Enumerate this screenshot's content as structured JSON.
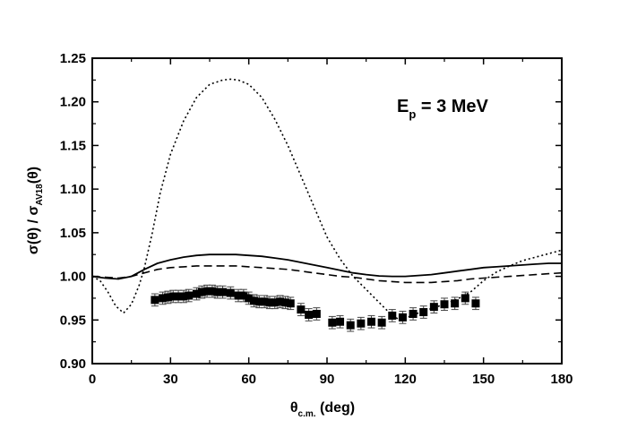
{
  "chart_data": {
    "type": "line",
    "annotation": {
      "base": "E",
      "sub": "p",
      "rest": " = 3 MeV"
    },
    "xlabel": {
      "base": "θ",
      "sub": "c.m.",
      "rest": " (deg)"
    },
    "ylabel": {
      "num_base": "σ(θ)",
      "sep": " / ",
      "den_base": "σ",
      "den_sub": "AV18",
      "den_rest": "(θ)"
    },
    "xlim": [
      0,
      180
    ],
    "ylim": [
      0.9,
      1.25
    ],
    "x_ticks": [
      "0",
      "30",
      "60",
      "90",
      "120",
      "150",
      "180"
    ],
    "y_ticks": [
      "0.90",
      "0.95",
      "1.00",
      "1.05",
      "1.10",
      "1.15",
      "1.20",
      "1.25"
    ],
    "grid": false,
    "series": [
      {
        "name": "solid",
        "style": "solid",
        "x": [
          0,
          5,
          10,
          15,
          20,
          25,
          30,
          35,
          40,
          45,
          50,
          55,
          60,
          65,
          70,
          75,
          80,
          85,
          90,
          95,
          100,
          105,
          110,
          115,
          120,
          125,
          130,
          135,
          140,
          145,
          150,
          155,
          160,
          165,
          170,
          175,
          180
        ],
        "y": [
          1.0,
          0.998,
          0.997,
          1.0,
          1.008,
          1.015,
          1.019,
          1.022,
          1.024,
          1.025,
          1.025,
          1.025,
          1.024,
          1.023,
          1.021,
          1.019,
          1.016,
          1.013,
          1.01,
          1.007,
          1.004,
          1.002,
          1.0005,
          1.0,
          1.0,
          1.001,
          1.002,
          1.004,
          1.006,
          1.008,
          1.01,
          1.011,
          1.012,
          1.013,
          1.014,
          1.015,
          1.015
        ]
      },
      {
        "name": "dashed",
        "style": "dashed",
        "x": [
          0,
          5,
          10,
          15,
          20,
          25,
          30,
          35,
          40,
          45,
          50,
          55,
          60,
          65,
          70,
          75,
          80,
          85,
          90,
          95,
          100,
          105,
          110,
          115,
          120,
          125,
          130,
          135,
          140,
          145,
          150,
          155,
          160,
          165,
          170,
          175,
          180
        ],
        "y": [
          1.0,
          0.999,
          0.998,
          1.0,
          1.004,
          1.008,
          1.01,
          1.011,
          1.012,
          1.012,
          1.012,
          1.012,
          1.011,
          1.01,
          1.009,
          1.008,
          1.006,
          1.004,
          1.002,
          1.0,
          0.999,
          0.997,
          0.995,
          0.994,
          0.993,
          0.993,
          0.993,
          0.994,
          0.995,
          0.997,
          0.998,
          0.999,
          1.0,
          1.001,
          1.002,
          1.003,
          1.004
        ]
      },
      {
        "name": "dotted",
        "style": "dotted",
        "x": [
          0,
          3,
          6,
          9,
          12,
          15,
          18,
          20,
          23,
          26,
          30,
          35,
          40,
          45,
          50,
          53,
          56,
          60,
          65,
          70,
          75,
          80,
          85,
          90,
          95,
          100,
          105,
          110,
          115,
          118,
          120,
          125,
          130,
          135,
          140,
          145,
          150,
          155,
          160,
          165,
          170,
          175,
          180
        ],
        "y": [
          1.0,
          0.995,
          0.982,
          0.966,
          0.958,
          0.968,
          0.99,
          1.01,
          1.05,
          1.095,
          1.14,
          1.178,
          1.205,
          1.22,
          1.225,
          1.226,
          1.225,
          1.22,
          1.205,
          1.18,
          1.15,
          1.115,
          1.08,
          1.045,
          1.02,
          1.0,
          0.985,
          0.97,
          0.955,
          0.95,
          0.952,
          0.958,
          0.963,
          0.968,
          0.974,
          0.982,
          0.995,
          1.005,
          1.012,
          1.018,
          1.022,
          1.026,
          1.03
        ]
      }
    ],
    "points": {
      "name": "data",
      "style": "filled-square",
      "x": [
        24,
        27,
        29,
        31,
        33,
        35,
        37,
        40,
        42,
        44,
        46,
        48,
        50,
        53,
        56,
        58,
        60,
        62,
        64,
        66,
        68,
        70,
        72,
        74,
        76,
        80,
        83,
        86,
        92,
        95,
        99,
        103,
        107,
        111,
        115,
        119,
        123,
        127,
        131,
        135,
        139,
        143,
        147
      ],
      "y": [
        0.973,
        0.975,
        0.976,
        0.977,
        0.977,
        0.977,
        0.978,
        0.98,
        0.982,
        0.983,
        0.983,
        0.982,
        0.982,
        0.981,
        0.978,
        0.978,
        0.975,
        0.972,
        0.971,
        0.971,
        0.97,
        0.97,
        0.971,
        0.97,
        0.969,
        0.962,
        0.956,
        0.957,
        0.947,
        0.948,
        0.944,
        0.946,
        0.948,
        0.947,
        0.955,
        0.953,
        0.957,
        0.959,
        0.965,
        0.968,
        0.969,
        0.975,
        0.969
      ],
      "err": 0.007
    }
  }
}
